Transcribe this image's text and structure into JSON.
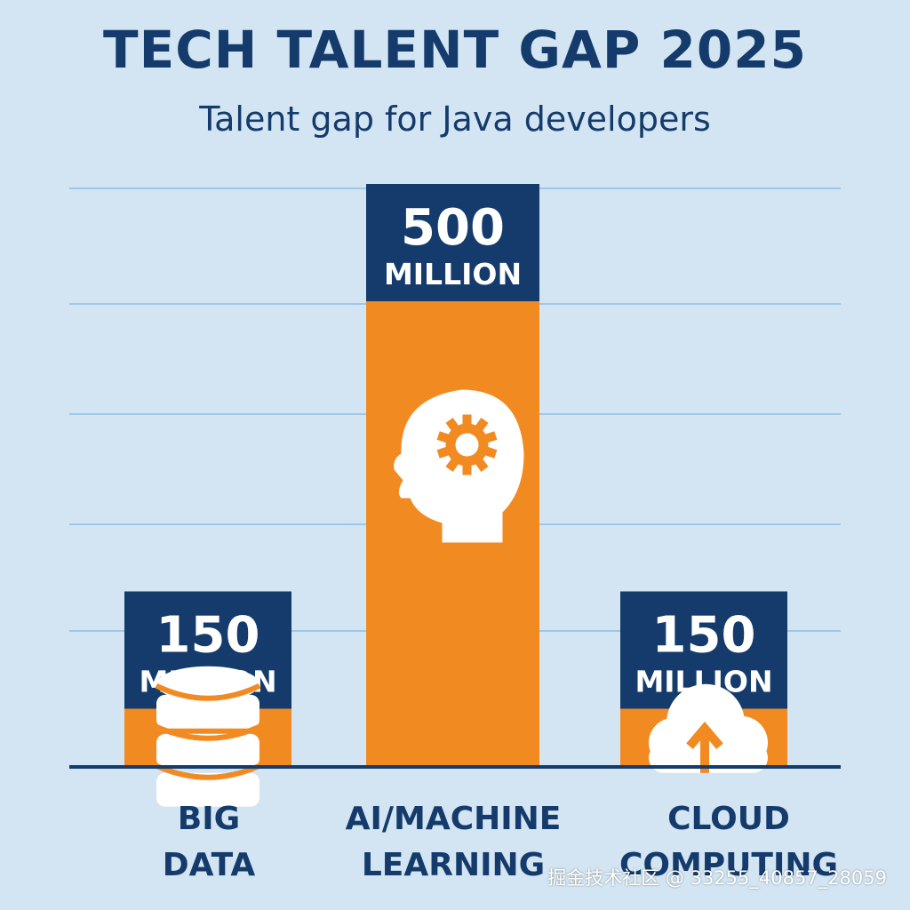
{
  "chart_data": {
    "type": "bar",
    "title": "TECH TALENT GAP 2025",
    "subtitle": "Talent gap for Java developers",
    "categories": [
      "BIG\nDATA",
      "AI/MACHINE\nLEARNING",
      "CLOUD\nCOMPUTING"
    ],
    "values": [
      150,
      500,
      150
    ],
    "value_labels": [
      "150",
      "500",
      "150"
    ],
    "unit_label": "MILLION",
    "icons": [
      "database-icon",
      "brain-gear-icon",
      "cloud-upload-icon"
    ],
    "xlabel": "",
    "ylabel": "",
    "grid": true
  },
  "colors": {
    "background": "#d3e5f2",
    "bar": "#f28a22",
    "label_box": "#143b6b",
    "title": "#143b6b",
    "gridline": "#9ec7e8",
    "icon": "#ffffff"
  },
  "watermark": "掘金技术社区 @ 33255_40857_28059"
}
